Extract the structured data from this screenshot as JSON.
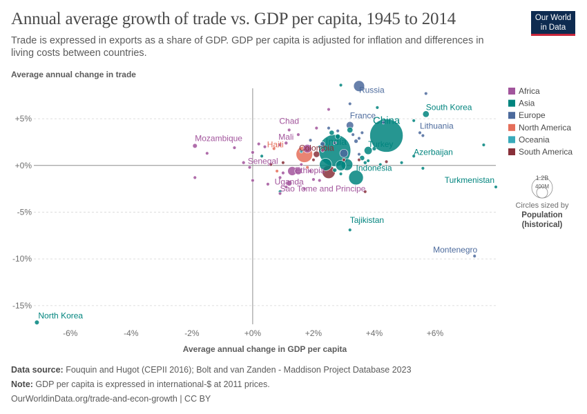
{
  "header": {
    "title": "Annual average growth of trade vs. GDP per capita, 1945 to 2014",
    "subtitle": "Trade is expressed in exports as a share of GDP. GDP per capita is adjusted for inflation and differences in living costs between countries.",
    "logo_line1": "Our World",
    "logo_line2": "in Data"
  },
  "colors": {
    "Africa": "#a2559c",
    "Asia": "#00847e",
    "Europe": "#4c6a9c",
    "North America": "#e56e5a",
    "Oceania": "#38aaba",
    "South America": "#883039"
  },
  "legend": {
    "items": [
      "Africa",
      "Asia",
      "Europe",
      "North America",
      "Oceania",
      "South America"
    ],
    "size_title": "Circles sized by",
    "size_bold1": "Population",
    "size_bold2": "(historical)",
    "size_big": "1.2B",
    "size_small": "400M"
  },
  "chart_data": {
    "type": "scatter",
    "xlabel": "Average annual change in GDP per capita",
    "ylabel": "Average annual change in trade",
    "xlim": [
      -7.2,
      8
    ],
    "ylim": [
      -17,
      8.7
    ],
    "x_ticks": [
      -6,
      -4,
      -2,
      0,
      2,
      4,
      6
    ],
    "x_tick_labels": [
      "-6%",
      "-4%",
      "-2%",
      "+0%",
      "+2%",
      "+4%",
      "+6%"
    ],
    "y_ticks": [
      5,
      0,
      -5,
      -10,
      -15
    ],
    "y_tick_labels": [
      "+5%",
      "+0%",
      "-5%",
      "-10%",
      "-15%"
    ],
    "grid": "horizontal dashed",
    "legend_position": "right",
    "points": [
      {
        "label": "China",
        "x": 4.4,
        "y": 3.2,
        "pop": 1300,
        "region": "Asia"
      },
      {
        "label": "India",
        "x": 2.7,
        "y": 1.6,
        "pop": 1200,
        "region": "Asia"
      },
      {
        "label": "Russia",
        "x": 3.5,
        "y": 8.5,
        "pop": 140,
        "region": "Europe"
      },
      {
        "label": "South Korea",
        "x": 5.7,
        "y": 5.5,
        "pop": 50,
        "region": "Asia"
      },
      {
        "label": "France",
        "x": 3.2,
        "y": 4.3,
        "pop": 64,
        "region": "Europe"
      },
      {
        "label": "Lithuania",
        "x": 5.5,
        "y": 3.5,
        "pop": 3,
        "region": "Europe"
      },
      {
        "label": "Chad",
        "x": 1.2,
        "y": 3.8,
        "pop": 13,
        "region": "Africa"
      },
      {
        "label": "Mali",
        "x": 1.1,
        "y": 2.4,
        "pop": 15,
        "region": "Africa"
      },
      {
        "label": "Mozambique",
        "x": -1.9,
        "y": 2.1,
        "pop": 25,
        "region": "Africa"
      },
      {
        "label": "Haiti",
        "x": 0.7,
        "y": 1.8,
        "pop": 10,
        "region": "North America"
      },
      {
        "label": "Colombia",
        "x": 2.1,
        "y": 1.2,
        "pop": 47,
        "region": "South America"
      },
      {
        "label": "Turkey",
        "x": 3.8,
        "y": 1.6,
        "pop": 75,
        "region": "Asia"
      },
      {
        "label": "Azerbaijan",
        "x": 5.3,
        "y": 1.0,
        "pop": 9,
        "region": "Asia"
      },
      {
        "label": "Senegal",
        "x": -0.3,
        "y": 0.3,
        "pop": 14,
        "region": "Africa"
      },
      {
        "label": "Ethiopia",
        "x": 1.3,
        "y": -0.6,
        "pop": 95,
        "region": "Africa"
      },
      {
        "label": "Indonesia",
        "x": 3.4,
        "y": -1.3,
        "pop": 250,
        "region": "Asia"
      },
      {
        "label": "Turkmenistan",
        "x": 8.0,
        "y": -2.3,
        "pop": 5,
        "region": "Asia"
      },
      {
        "label": "Uganda",
        "x": 1.2,
        "y": -1.9,
        "pop": 37,
        "region": "Africa"
      },
      {
        "label": "Sao Tome and Principe",
        "x": 0.9,
        "y": -3.0,
        "pop": 0.2,
        "region": "Africa"
      },
      {
        "label": "Tajikistan",
        "x": 3.2,
        "y": -6.9,
        "pop": 8,
        "region": "Asia"
      },
      {
        "label": "Montenegro",
        "x": 7.3,
        "y": -9.7,
        "pop": 0.6,
        "region": "Europe"
      },
      {
        "label": "North Korea",
        "x": -7.1,
        "y": -16.8,
        "pop": 25,
        "region": "Asia"
      },
      {
        "label": "",
        "x": 1.7,
        "y": 1.2,
        "pop": 320,
        "region": "North America"
      },
      {
        "label": "",
        "x": 2.5,
        "y": -0.7,
        "pop": 200,
        "region": "South America"
      },
      {
        "label": "",
        "x": 2.4,
        "y": 0.1,
        "pop": 180,
        "region": "Asia"
      },
      {
        "label": "",
        "x": 3.1,
        "y": 0.1,
        "pop": 160,
        "region": "Asia"
      },
      {
        "label": "",
        "x": 2.9,
        "y": 0.0,
        "pop": 125,
        "region": "Asia"
      },
      {
        "label": "",
        "x": 1.8,
        "y": 1.8,
        "pop": 85,
        "region": "Africa"
      },
      {
        "label": "",
        "x": 1.5,
        "y": -0.6,
        "pop": 60,
        "region": "Africa"
      },
      {
        "label": "",
        "x": 3.0,
        "y": 1.3,
        "pop": 80,
        "region": "Europe"
      },
      {
        "label": "",
        "x": 3.2,
        "y": 3.8,
        "pop": 40,
        "region": "Asia"
      },
      {
        "label": "",
        "x": 2.8,
        "y": 3.1,
        "pop": 30,
        "region": "Asia"
      },
      {
        "label": "",
        "x": 2.6,
        "y": 3.5,
        "pop": 30,
        "region": "Asia"
      },
      {
        "label": "",
        "x": 2.3,
        "y": 2.3,
        "pop": 25,
        "region": "Europe"
      },
      {
        "label": "",
        "x": 3.4,
        "y": 2.6,
        "pop": 20,
        "region": "Europe"
      },
      {
        "label": "",
        "x": 3.6,
        "y": 0.8,
        "pop": 30,
        "region": "Asia"
      },
      {
        "label": "",
        "x": 4.0,
        "y": 1.8,
        "pop": 20,
        "region": "Asia"
      },
      {
        "label": "",
        "x": 3.7,
        "y": 0.3,
        "pop": 15,
        "region": "Asia"
      },
      {
        "label": "",
        "x": 2.7,
        "y": -0.5,
        "pop": 20,
        "region": "Asia"
      },
      {
        "label": "",
        "x": 2.9,
        "y": -0.9,
        "pop": 12,
        "region": "Asia"
      },
      {
        "label": "",
        "x": 3.2,
        "y": 6.6,
        "pop": 6,
        "region": "Europe"
      },
      {
        "label": "",
        "x": 2.9,
        "y": 8.6,
        "pop": 4,
        "region": "Asia"
      },
      {
        "label": "",
        "x": 2.8,
        "y": 3.7,
        "pop": 12,
        "region": "Europe"
      },
      {
        "label": "",
        "x": 2.5,
        "y": 4.0,
        "pop": 10,
        "region": "Europe"
      },
      {
        "label": "",
        "x": 3.3,
        "y": 3.3,
        "pop": 8,
        "region": "Europe"
      },
      {
        "label": "",
        "x": 3.5,
        "y": 2.9,
        "pop": 8,
        "region": "Europe"
      },
      {
        "label": "",
        "x": 3.6,
        "y": 3.5,
        "pop": 10,
        "region": "Europe"
      },
      {
        "label": "",
        "x": 4.1,
        "y": 6.2,
        "pop": 5,
        "region": "Asia"
      },
      {
        "label": "",
        "x": 4.3,
        "y": 4.6,
        "pop": 5,
        "region": "Europe"
      },
      {
        "label": "",
        "x": 5.3,
        "y": 4.8,
        "pop": 4,
        "region": "Asia"
      },
      {
        "label": "",
        "x": 5.6,
        "y": 3.2,
        "pop": 4,
        "region": "Europe"
      },
      {
        "label": "",
        "x": 5.7,
        "y": 7.7,
        "pop": 5,
        "region": "Europe"
      },
      {
        "label": "",
        "x": 7.6,
        "y": 2.2,
        "pop": 5,
        "region": "Asia"
      },
      {
        "label": "",
        "x": 5.6,
        "y": -0.3,
        "pop": 4,
        "region": "Asia"
      },
      {
        "label": "",
        "x": 4.9,
        "y": 0.3,
        "pop": 4,
        "region": "Asia"
      },
      {
        "label": "",
        "x": 4.4,
        "y": 0.4,
        "pop": 5,
        "region": "South America"
      },
      {
        "label": "",
        "x": 4.2,
        "y": 0.1,
        "pop": 5,
        "region": "Asia"
      },
      {
        "label": "",
        "x": 3.8,
        "y": 0.5,
        "pop": 5,
        "region": "Asia"
      },
      {
        "label": "",
        "x": 3.5,
        "y": 0.6,
        "pop": 5,
        "region": "South America"
      },
      {
        "label": "",
        "x": 3.0,
        "y": 0.6,
        "pop": 5,
        "region": "South America"
      },
      {
        "label": "",
        "x": 2.0,
        "y": 0.6,
        "pop": 5,
        "region": "South America"
      },
      {
        "label": "",
        "x": 2.0,
        "y": -1.5,
        "pop": 6,
        "region": "Africa"
      },
      {
        "label": "",
        "x": 2.3,
        "y": 1.6,
        "pop": 6,
        "region": "Africa"
      },
      {
        "label": "",
        "x": 0.9,
        "y": 2.2,
        "pop": 4,
        "region": "Africa"
      },
      {
        "label": "",
        "x": 0.4,
        "y": 2.0,
        "pop": 4,
        "region": "Africa"
      },
      {
        "label": "",
        "x": 0.2,
        "y": 2.3,
        "pop": 3,
        "region": "Africa"
      },
      {
        "label": "",
        "x": 0.0,
        "y": 1.4,
        "pop": 3,
        "region": "Africa"
      },
      {
        "label": "",
        "x": -0.6,
        "y": 1.9,
        "pop": 3,
        "region": "Africa"
      },
      {
        "label": "",
        "x": -1.5,
        "y": 1.3,
        "pop": 3,
        "region": "Africa"
      },
      {
        "label": "",
        "x": -1.9,
        "y": -1.3,
        "pop": 3,
        "region": "Africa"
      },
      {
        "label": "",
        "x": 0.0,
        "y": -1.6,
        "pop": 3,
        "region": "Africa"
      },
      {
        "label": "",
        "x": 0.5,
        "y": -2.0,
        "pop": 3,
        "region": "Africa"
      },
      {
        "label": "",
        "x": 1.0,
        "y": -0.8,
        "pop": 5,
        "region": "Africa"
      },
      {
        "label": "",
        "x": 1.6,
        "y": 0.1,
        "pop": 6,
        "region": "Africa"
      },
      {
        "label": "",
        "x": 1.9,
        "y": -0.6,
        "pop": 6,
        "region": "Africa"
      },
      {
        "label": "",
        "x": 2.2,
        "y": -1.6,
        "pop": 5,
        "region": "Africa"
      },
      {
        "label": "",
        "x": 1.7,
        "y": -2.5,
        "pop": 3,
        "region": "Africa"
      },
      {
        "label": "",
        "x": 1.1,
        "y": -2.3,
        "pop": 3,
        "region": "Africa"
      },
      {
        "label": "",
        "x": 0.9,
        "y": -1.3,
        "pop": 3,
        "region": "Africa"
      },
      {
        "label": "",
        "x": 2.5,
        "y": 6.0,
        "pop": 3,
        "region": "Africa"
      },
      {
        "label": "",
        "x": 2.1,
        "y": 4.0,
        "pop": 3,
        "region": "Africa"
      },
      {
        "label": "",
        "x": 1.5,
        "y": 3.3,
        "pop": 4,
        "region": "Africa"
      },
      {
        "label": "",
        "x": 2.7,
        "y": 2.4,
        "pop": 4,
        "region": "Africa"
      },
      {
        "label": "",
        "x": -0.1,
        "y": -0.2,
        "pop": 3,
        "region": "Africa"
      },
      {
        "label": "",
        "x": 0.6,
        "y": 0.1,
        "pop": 4,
        "region": "South America"
      },
      {
        "label": "",
        "x": 1.0,
        "y": 0.3,
        "pop": 4,
        "region": "South America"
      },
      {
        "label": "",
        "x": 1.8,
        "y": -0.2,
        "pop": 4,
        "region": "North America"
      },
      {
        "label": "",
        "x": 0.8,
        "y": -0.6,
        "pop": 4,
        "region": "North America"
      },
      {
        "label": "",
        "x": 3.7,
        "y": -2.8,
        "pop": 3,
        "region": "South America"
      },
      {
        "label": "",
        "x": 0.9,
        "y": -2.8,
        "pop": 4,
        "region": "Asia"
      },
      {
        "label": "",
        "x": 0.3,
        "y": 1.0,
        "pop": 3,
        "region": "Asia"
      },
      {
        "label": "",
        "x": 1.6,
        "y": 1.5,
        "pop": 4,
        "region": "Oceania"
      },
      {
        "label": "",
        "x": 2.2,
        "y": 2.0,
        "pop": 4,
        "region": "Oceania"
      },
      {
        "label": "",
        "x": 1.9,
        "y": 2.7,
        "pop": 3,
        "region": "Europe"
      },
      {
        "label": "",
        "x": 3.5,
        "y": 1.2,
        "pop": 4,
        "region": "Europe"
      }
    ]
  },
  "footer": {
    "source_label": "Data source:",
    "source_text": " Fouquin and Hugot (CEPII 2016); Bolt and van Zanden - Maddison Project Database 2023",
    "note_label": "Note:",
    "note_text": " GDP per capita is expressed in international-$ at 2011 prices.",
    "url": "OurWorldinData.org/trade-and-econ-growth | CC BY"
  }
}
